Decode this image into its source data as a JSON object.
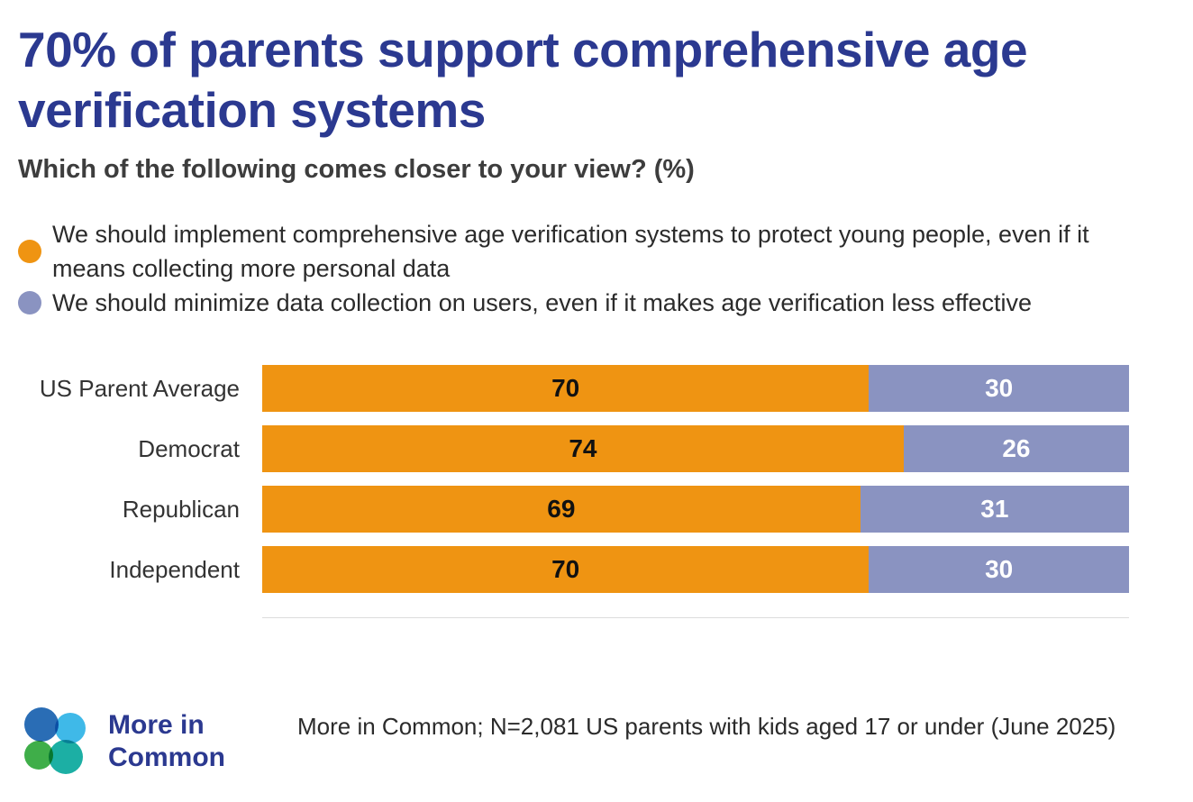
{
  "chart_data": {
    "type": "bar",
    "orientation": "horizontal",
    "stacked": true,
    "title": "70% of parents support comprehensive age verification systems",
    "subtitle": "Which of the following comes closer to your view? (%)",
    "categories": [
      "US Parent Average",
      "Democrat",
      "Republican",
      "Independent"
    ],
    "series": [
      {
        "name": "We should implement comprehensive age verification systems to protect young people, even if it means collecting more personal data",
        "color": "#EF9412",
        "value_label_color": "#111111",
        "values": [
          70,
          74,
          69,
          70
        ]
      },
      {
        "name": "We should minimize data collection on users, even if it makes age verification less effective",
        "color": "#8A93C1",
        "value_label_color": "#FFFFFF",
        "values": [
          30,
          26,
          31,
          30
        ]
      }
    ],
    "xlim": [
      0,
      100
    ],
    "value_labels": true,
    "legend_position": "top",
    "grid": false
  },
  "footer": {
    "logo_line1": "More in",
    "logo_line2": "Common",
    "source": "More in Common; N=2,081 US parents with kids aged 17 or under (June 2025)"
  },
  "colors": {
    "title_navy": "#2B3990",
    "subtitle_gray": "#3D3D3D",
    "orange": "#EF9412",
    "purple_blue": "#8A93C1",
    "divider": "#DCDCDC",
    "logo_blue": "#2A6DB5",
    "logo_cyan": "#3FB9E8",
    "logo_green": "#3FAE49",
    "logo_teal": "#1CAFA4"
  }
}
